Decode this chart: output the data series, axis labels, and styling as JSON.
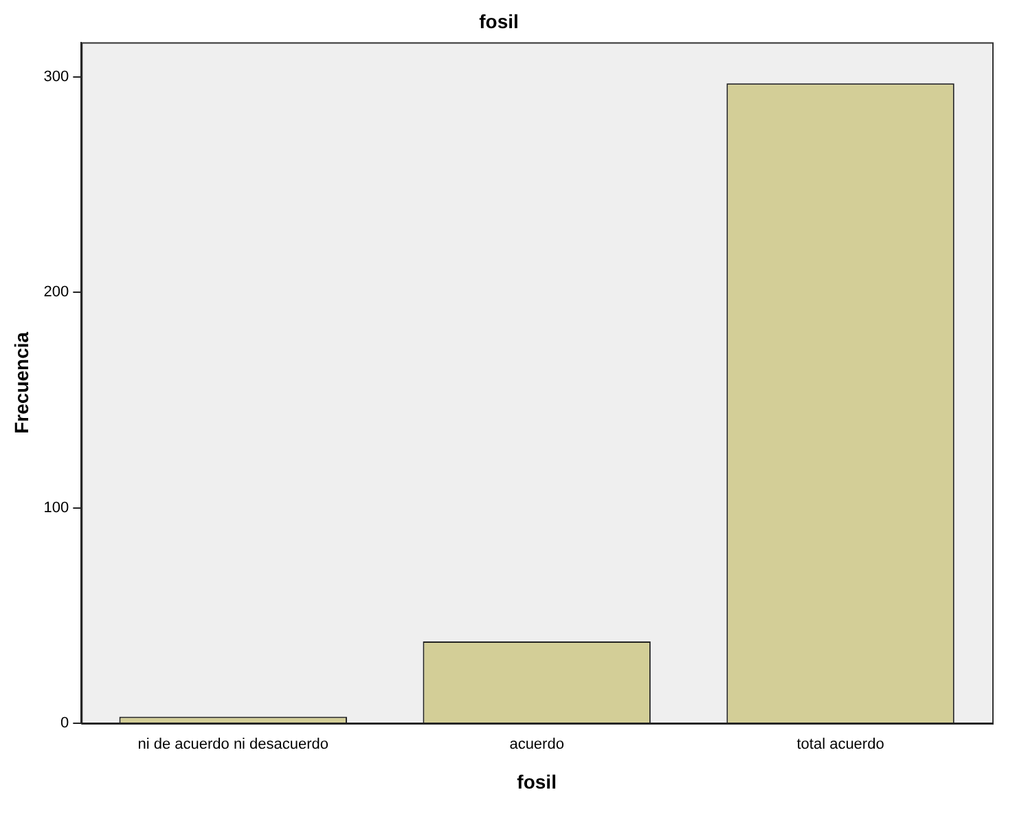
{
  "chart_data": {
    "type": "bar",
    "title": "fosil",
    "xlabel": "fosil",
    "ylabel": "Frecuencia",
    "categories": [
      "ni de acuerdo ni desacuerdo",
      "acuerdo",
      "total acuerdo"
    ],
    "values": [
      3,
      38,
      297
    ],
    "color": "#d3ce97",
    "ylim": [
      0,
      316
    ],
    "yticks": [
      0,
      100,
      200,
      300
    ],
    "grid": false,
    "legend": false
  }
}
